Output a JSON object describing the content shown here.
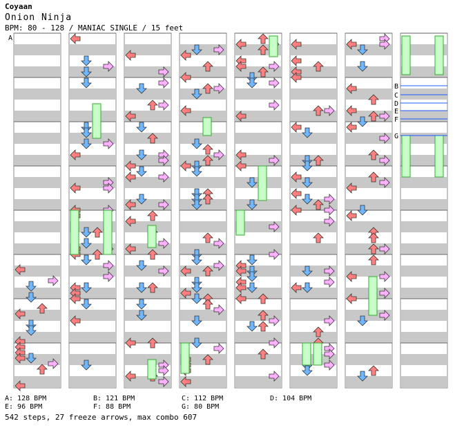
{
  "header": {
    "artist": "Coyaan",
    "title": "Onion Ninja",
    "meta": "BPM: 80 - 128 / MANIAC SINGLE / 15 feet"
  },
  "bpm_changes": [
    {
      "mark": "A",
      "text": "A: 128 BPM"
    },
    {
      "mark": "B",
      "text": "B: 121 BPM"
    },
    {
      "mark": "C",
      "text": "C: 112 BPM"
    },
    {
      "mark": "D",
      "text": "D: 104 BPM"
    },
    {
      "mark": "E",
      "text": "E: 96 BPM"
    },
    {
      "mark": "F",
      "text": "F: 88 BPM"
    },
    {
      "mark": "G",
      "text": "G: 80 BPM"
    }
  ],
  "footer": "542 steps, 27 freeze arrows, max combo 607",
  "colors": {
    "left": "#ff8080",
    "down": "#6fb8ff",
    "up": "#ff8080",
    "right": "#ffb0ff",
    "freeze": "#c8ffc8",
    "freeze_border": "#33aa33",
    "band": "#c8c8c8",
    "bpm_line": "#1a5cff"
  }
}
